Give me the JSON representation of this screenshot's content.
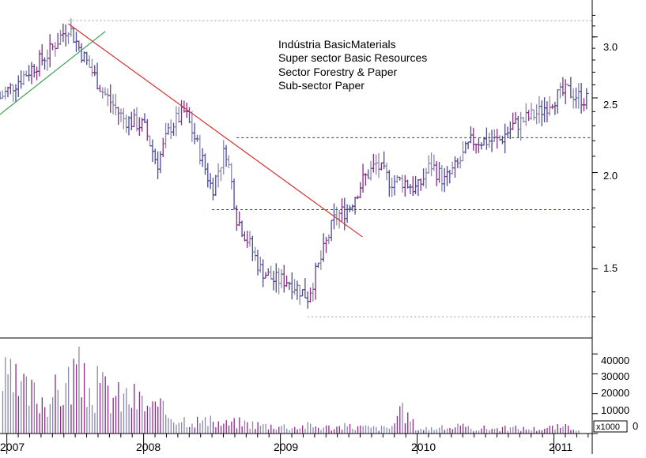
{
  "colors": {
    "bar_blue": "#4a4a9a",
    "bar_purple": "#8a2a8a",
    "bar_grey": "#8a8aaa",
    "trend_down": "#d83030",
    "trend_up": "#3aa050",
    "level_line": "#2b2bb0",
    "dotted_ref": "#9a9a9a",
    "axis": "#000000"
  },
  "chart_data": [
    {
      "type": "ohlc",
      "annotations": [
        "Indústria BasicMaterials",
        "Super sector Basic Resources",
        "Sector Forestry & Paper",
        "Sub-sector Paper"
      ],
      "y_scale": "log",
      "ylim": [
        1.22,
        3.35
      ],
      "y_ticks": [
        "1.5",
        "2.0",
        "2.5",
        "3.0"
      ],
      "x_ticks": [
        "2007",
        "2008",
        "2009",
        "2010",
        "2011"
      ],
      "xlim": [
        2006.95,
        2011.28
      ],
      "series": [
        {
          "x": [
            2006.95,
            2007.15,
            2007.3,
            2007.45,
            2007.55,
            2007.7,
            2007.85,
            2008.0,
            2008.1,
            2008.2,
            2008.3,
            2008.4,
            2008.5,
            2008.6,
            2008.68,
            2008.75,
            2008.85,
            2008.95,
            2009.05,
            2009.12,
            2009.2,
            2009.3,
            2009.4,
            2009.5,
            2009.6,
            2009.7,
            2009.8,
            2009.9,
            2010.0,
            2010.1,
            2010.2,
            2010.3,
            2010.4,
            2010.5,
            2010.6,
            2010.7,
            2010.8,
            2010.9,
            2011.0,
            2011.1,
            2011.2,
            2011.25
          ],
          "y": [
            2.5,
            2.7,
            2.85,
            3.1,
            2.85,
            2.55,
            2.35,
            2.3,
            2.05,
            2.3,
            2.4,
            2.15,
            1.9,
            2.15,
            1.75,
            1.65,
            1.5,
            1.45,
            1.45,
            1.42,
            1.38,
            1.55,
            1.75,
            1.8,
            1.95,
            2.05,
            1.95,
            1.95,
            1.9,
            2.05,
            1.95,
            2.05,
            2.2,
            2.2,
            2.2,
            2.3,
            2.35,
            2.4,
            2.5,
            2.55,
            2.5,
            2.48
          ]
        }
      ],
      "levels": [
        {
          "value": 3.15,
          "style": "dotted"
        },
        {
          "value": 2.22,
          "style": "dashed"
        },
        {
          "value": 1.79,
          "style": "dashed"
        },
        {
          "value": 1.3,
          "style": "dotted"
        }
      ],
      "trendlines": [
        {
          "color": "down",
          "from": [
            2007.45,
            3.12
          ],
          "to": [
            2009.6,
            1.65
          ]
        },
        {
          "color": "up",
          "from": [
            2006.95,
            2.38
          ],
          "to": [
            2007.72,
            3.05
          ]
        }
      ]
    },
    {
      "type": "bar",
      "ylabel": "x1000",
      "ylim": [
        0,
        48000
      ],
      "y_ticks": [
        "0",
        "10000",
        "20000",
        "30000",
        "40000"
      ],
      "x": [
        2006.97,
        2007.05,
        2007.12,
        2007.2,
        2007.28,
        2007.36,
        2007.44,
        2007.5,
        2007.58,
        2007.66,
        2007.74,
        2007.82,
        2007.9,
        2007.98,
        2008.06,
        2008.14,
        2008.22,
        2008.3,
        2008.4,
        2008.5,
        2008.6,
        2008.7,
        2008.8,
        2008.9,
        2009.0,
        2009.1,
        2009.2,
        2009.3,
        2009.4,
        2009.5,
        2009.6,
        2009.7,
        2009.8,
        2009.9,
        2010.0,
        2010.1,
        2010.2,
        2010.3,
        2010.4,
        2010.5,
        2010.6,
        2010.7,
        2010.8,
        2010.9,
        2011.0,
        2011.1,
        2011.2
      ],
      "values": [
        33000,
        30000,
        26000,
        24000,
        22000,
        25000,
        30000,
        41000,
        27000,
        28000,
        26000,
        22000,
        23000,
        20000,
        16000,
        14000,
        11000,
        9000,
        8000,
        7000,
        6000,
        7000,
        6000,
        5000,
        5000,
        4000,
        5000,
        4000,
        4000,
        4500,
        4000,
        3500,
        3500,
        14000,
        3000,
        3500,
        3500,
        4500,
        3000,
        3500,
        3000,
        3500,
        3000,
        3000,
        4000,
        4000,
        3500
      ]
    }
  ]
}
